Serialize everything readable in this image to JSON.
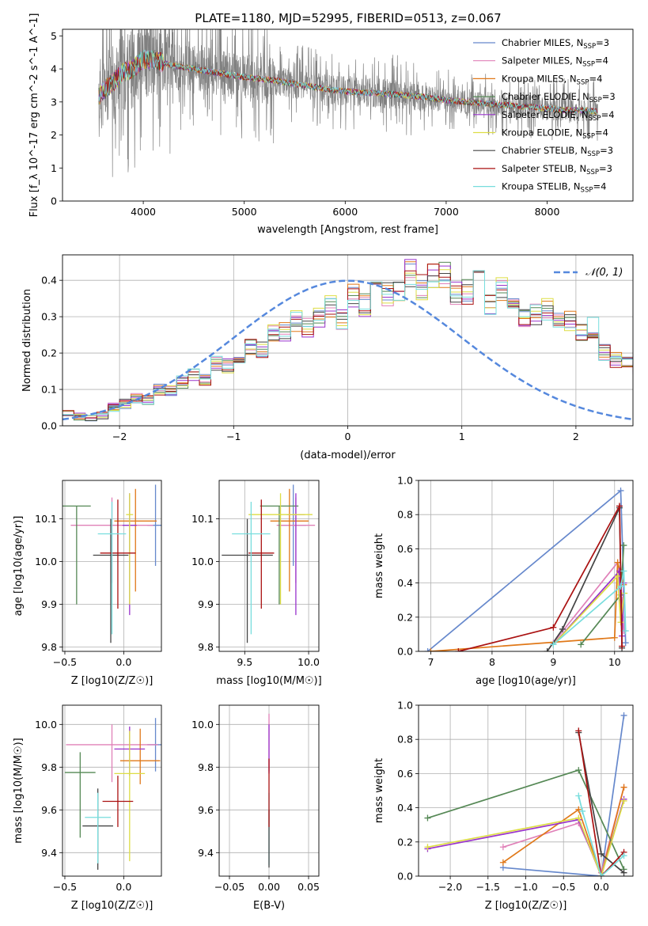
{
  "figure": {
    "title": "PLATE=1180, MJD=52995, FIBERID=0513, z=0.067"
  },
  "series": [
    {
      "key": "chab_miles",
      "name": "Chabrier MILES, N_SSP=3",
      "name_main": "Chabrier MILES, N",
      "name_sub": "SSP",
      "name_tail": "=3",
      "color": "#6688cc"
    },
    {
      "key": "salp_miles",
      "name": "Salpeter MILES, N_SSP=4",
      "name_main": "Salpeter MILES, N",
      "name_sub": "SSP",
      "name_tail": "=4",
      "color": "#e080b8"
    },
    {
      "key": "krou_miles",
      "name": "Kroupa MILES, N_SSP=4",
      "name_main": "Kroupa MILES, N",
      "name_sub": "SSP",
      "name_tail": "=4",
      "color": "#e07818"
    },
    {
      "key": "chab_elodie",
      "name": "Chabrier ELODIE, N_SSP=3",
      "name_main": "Chabrier ELODIE, N",
      "name_sub": "SSP",
      "name_tail": "=3",
      "color": "#558855"
    },
    {
      "key": "salp_elodie",
      "name": "Salpeter ELODIE, N_SSP=4",
      "name_main": "Salpeter ELODIE, N",
      "name_sub": "SSP",
      "name_tail": "=4",
      "color": "#9933cc"
    },
    {
      "key": "krou_elodie",
      "name": "Kroupa ELODIE, N_SSP=4",
      "name_main": "Kroupa ELODIE, N",
      "name_sub": "SSP",
      "name_tail": "=4",
      "color": "#dddd44"
    },
    {
      "key": "chab_stelib",
      "name": "Chabrier STELIB, N_SSP=3",
      "name_main": "Chabrier STELIB, N",
      "name_sub": "SSP",
      "name_tail": "=3",
      "color": "#444444"
    },
    {
      "key": "salp_stelib",
      "name": "Salpeter STELIB, N_SSP=3",
      "name_main": "Salpeter STELIB, N",
      "name_sub": "SSP",
      "name_tail": "=3",
      "color": "#aa1111"
    },
    {
      "key": "krou_stelib",
      "name": "Kroupa STELIB, N_SSP=4",
      "name_main": "Kroupa STELIB, N",
      "name_sub": "SSP",
      "name_tail": "=4",
      "color": "#77dddd"
    }
  ],
  "chart_data": [
    {
      "id": "spectrum",
      "type": "line",
      "xlabel": "wavelength [Angstrom, rest frame]",
      "ylabel": "Flux [f_λ 10^-17 erg cm^-2 s^-1 A^-1]",
      "xlim": [
        3200,
        8850
      ],
      "ylim": [
        0,
        5.2
      ],
      "xticks": [
        4000,
        5000,
        6000,
        7000,
        8000
      ],
      "yticks": [
        0,
        1,
        2,
        3,
        4,
        5
      ],
      "grid": false,
      "legend": "top-right",
      "data_color": "#808080",
      "data_range": [
        3560,
        8500
      ],
      "model_continuum": {
        "x": [
          3560,
          3700,
          3800,
          3900,
          4000,
          4100,
          4300,
          4500,
          4800,
          5000,
          5300,
          5600,
          5900,
          6100,
          6400,
          6600,
          6800,
          7000,
          7200,
          7400,
          7600,
          7800,
          8000,
          8200,
          8400,
          8500
        ],
        "y": [
          3.2,
          3.6,
          3.9,
          4.0,
          4.3,
          4.25,
          4.1,
          4.0,
          3.85,
          3.75,
          3.65,
          3.5,
          3.35,
          3.3,
          3.25,
          3.2,
          3.15,
          3.05,
          3.0,
          2.95,
          2.9,
          2.85,
          2.8,
          2.75,
          2.75,
          2.7
        ]
      }
    },
    {
      "id": "residual_hist",
      "type": "step",
      "xlabel": "(data-model)/error",
      "ylabel": "Normed distribution",
      "xlim": [
        -2.5,
        2.5
      ],
      "ylim": [
        0,
        0.47
      ],
      "xticks": [
        -2,
        -1,
        0,
        1,
        2
      ],
      "yticks": [
        0.0,
        0.1,
        0.2,
        0.3,
        0.4
      ],
      "grid": true,
      "legend": "top-right",
      "gaussian": {
        "label": "𝒩(0, 1)",
        "color": "#5588dd"
      },
      "bin_width": 0.1,
      "mean_hist": [
        0.035,
        0.025,
        0.02,
        0.03,
        0.05,
        0.06,
        0.075,
        0.07,
        0.1,
        0.095,
        0.12,
        0.14,
        0.13,
        0.17,
        0.165,
        0.19,
        0.22,
        0.21,
        0.255,
        0.26,
        0.29,
        0.27,
        0.3,
        0.33,
        0.29,
        0.36,
        0.33,
        0.37,
        0.36,
        0.38,
        0.42,
        0.38,
        0.42,
        0.41,
        0.36,
        0.37,
        0.39,
        0.34,
        0.38,
        0.33,
        0.3,
        0.31,
        0.32,
        0.28,
        0.29,
        0.26,
        0.27,
        0.2,
        0.18,
        0.17,
        0.16,
        0.13,
        0.12,
        0.135,
        0.09,
        0.1,
        0.09,
        0.075,
        0.06,
        0.075,
        0.06,
        0.055,
        0.04,
        0.03,
        0.02,
        0.015,
        0.025,
        0.02,
        0.02,
        0.02
      ]
    },
    {
      "id": "age_vs_Z",
      "type": "errorbar",
      "xlabel": "Z [log10(Z/Z☉)]",
      "ylabel": "age [log10(age/yr)]",
      "xlim": [
        -0.52,
        0.32
      ],
      "ylim": [
        9.79,
        10.19
      ],
      "xticks": [
        -0.5,
        0.0
      ],
      "yticks": [
        9.8,
        9.9,
        10.0,
        10.1
      ],
      "grid": true,
      "points": [
        {
          "s": "chab_miles",
          "x": 0.27,
          "y": 10.085,
          "xerr": 0.07,
          "ylo": 9.99,
          "yhi": 10.18
        },
        {
          "s": "salp_miles",
          "x": -0.1,
          "y": 10.085,
          "xerr": 0.35,
          "ylo": 9.95,
          "yhi": 10.15
        },
        {
          "s": "krou_miles",
          "x": 0.1,
          "y": 10.095,
          "xerr": 0.18,
          "ylo": 9.93,
          "yhi": 10.17
        },
        {
          "s": "chab_elodie",
          "x": -0.4,
          "y": 10.13,
          "xerr": 0.12,
          "ylo": 9.9,
          "yhi": 10.13
        },
        {
          "s": "salp_elodie",
          "x": 0.05,
          "y": 10.085,
          "xerr": 0.06,
          "ylo": 9.875,
          "yhi": 10.16
        },
        {
          "s": "krou_elodie",
          "x": 0.05,
          "y": 10.11,
          "xerr": 0.03,
          "ylo": 9.9,
          "yhi": 10.16
        },
        {
          "s": "chab_stelib",
          "x": -0.11,
          "y": 10.015,
          "xerr": 0.15,
          "ylo": 9.81,
          "yhi": 10.1
        },
        {
          "s": "salp_stelib",
          "x": -0.05,
          "y": 10.02,
          "xerr": 0.15,
          "ylo": 9.89,
          "yhi": 10.145
        },
        {
          "s": "krou_stelib",
          "x": -0.1,
          "y": 10.065,
          "xerr": 0.12,
          "ylo": 9.83,
          "yhi": 10.14
        }
      ]
    },
    {
      "id": "age_vs_mass",
      "type": "errorbar",
      "xlabel": "mass [log10(M/M☉)]",
      "ylabel": "",
      "xlim": [
        9.3,
        10.08
      ],
      "ylim": [
        9.79,
        10.19
      ],
      "xticks": [
        9.5,
        10.0
      ],
      "yticks": [
        9.8,
        9.9,
        10.0,
        10.1
      ],
      "grid": true,
      "points": [
        {
          "s": "chab_miles",
          "x": 9.88,
          "y": 10.085,
          "xerr": 0.1,
          "ylo": 9.99,
          "yhi": 10.18
        },
        {
          "s": "salp_miles",
          "x": 9.9,
          "y": 10.085,
          "xerr": 0.15,
          "ylo": 9.95,
          "yhi": 10.15
        },
        {
          "s": "krou_miles",
          "x": 9.85,
          "y": 10.095,
          "xerr": 0.15,
          "ylo": 9.93,
          "yhi": 10.17
        },
        {
          "s": "chab_elodie",
          "x": 9.77,
          "y": 10.13,
          "xerr": 0.15,
          "ylo": 9.9,
          "yhi": 10.13
        },
        {
          "s": "salp_elodie",
          "x": 9.9,
          "y": 10.11,
          "xerr": 0.07,
          "ylo": 9.875,
          "yhi": 10.16
        },
        {
          "s": "krou_elodie",
          "x": 9.78,
          "y": 10.11,
          "xerr": 0.25,
          "ylo": 9.9,
          "yhi": 10.16
        },
        {
          "s": "chab_stelib",
          "x": 9.52,
          "y": 10.015,
          "xerr": 0.2,
          "ylo": 9.81,
          "yhi": 10.1
        },
        {
          "s": "salp_stelib",
          "x": 9.63,
          "y": 10.02,
          "xerr": 0.1,
          "ylo": 9.89,
          "yhi": 10.145
        },
        {
          "s": "krou_stelib",
          "x": 9.55,
          "y": 10.065,
          "xerr": 0.15,
          "ylo": 9.83,
          "yhi": 10.14
        }
      ]
    },
    {
      "id": "weight_vs_age",
      "type": "line",
      "xlabel": "age [log10(age/yr)]",
      "ylabel": "mass weight",
      "xlim": [
        6.8,
        10.3
      ],
      "ylim": [
        0,
        1.0
      ],
      "xticks": [
        7,
        8,
        9,
        10
      ],
      "yticks": [
        0.0,
        0.2,
        0.4,
        0.6,
        0.8,
        1.0
      ],
      "grid": true,
      "lines": [
        {
          "s": "chab_miles",
          "x": [
            6.95,
            10.1,
            10.18
          ],
          "y": [
            0.0,
            0.94,
            0.05
          ]
        },
        {
          "s": "salp_miles",
          "x": [
            9.0,
            10.05,
            10.15,
            10.12
          ],
          "y": [
            0.05,
            0.52,
            0.12,
            0.3
          ]
        },
        {
          "s": "krou_miles",
          "x": [
            7.0,
            10.0,
            10.05,
            10.15
          ],
          "y": [
            0.0,
            0.08,
            0.52,
            0.39
          ]
        },
        {
          "s": "chab_elodie",
          "x": [
            9.45,
            10.1,
            10.15
          ],
          "y": [
            0.04,
            0.33,
            0.62
          ]
        },
        {
          "s": "salp_elodie",
          "x": [
            9.0,
            10.08,
            10.12,
            10.15
          ],
          "y": [
            0.04,
            0.47,
            0.09,
            0.4
          ]
        },
        {
          "s": "krou_elodie",
          "x": [
            9.0,
            10.05,
            10.1,
            10.16
          ],
          "y": [
            0.04,
            0.44,
            0.17,
            0.34
          ]
        },
        {
          "s": "chab_stelib",
          "x": [
            8.9,
            9.15,
            10.08,
            10.12
          ],
          "y": [
            0.0,
            0.13,
            0.84,
            0.02
          ]
        },
        {
          "s": "salp_stelib",
          "x": [
            7.45,
            9.0,
            10.08,
            10.12
          ],
          "y": [
            0.0,
            0.14,
            0.85,
            0.03
          ]
        },
        {
          "s": "krou_stelib",
          "x": [
            9.0,
            10.1,
            10.15,
            10.18
          ],
          "y": [
            0.04,
            0.38,
            0.47,
            0.12
          ]
        }
      ]
    },
    {
      "id": "mass_vs_Z",
      "type": "errorbar",
      "xlabel": "Z [log10(Z/Z☉)]",
      "ylabel": "mass [log10(M/M☉)]",
      "xlim": [
        -0.52,
        0.32
      ],
      "ylim": [
        9.29,
        10.09
      ],
      "xticks": [
        -0.5,
        0.0
      ],
      "yticks": [
        9.4,
        9.6,
        9.8,
        10.0
      ],
      "grid": true,
      "points": [
        {
          "s": "chab_miles",
          "x": 0.27,
          "y": 9.905,
          "xerr": 0.07,
          "ylo": 9.78,
          "yhi": 10.03
        },
        {
          "s": "salp_miles",
          "x": -0.1,
          "y": 9.905,
          "xerr": 0.39,
          "ylo": 9.73,
          "yhi": 10.0
        },
        {
          "s": "krou_miles",
          "x": 0.14,
          "y": 9.83,
          "xerr": 0.17,
          "ylo": 9.72,
          "yhi": 9.98
        },
        {
          "s": "chab_elodie",
          "x": -0.37,
          "y": 9.775,
          "xerr": 0.13,
          "ylo": 9.47,
          "yhi": 9.87
        },
        {
          "s": "salp_elodie",
          "x": 0.05,
          "y": 9.885,
          "xerr": 0.13,
          "ylo": 9.76,
          "yhi": 9.99
        },
        {
          "s": "krou_elodie",
          "x": 0.05,
          "y": 9.77,
          "xerr": 0.13,
          "ylo": 9.36,
          "yhi": 9.97
        },
        {
          "s": "chab_stelib",
          "x": -0.22,
          "y": 9.525,
          "xerr": 0.13,
          "ylo": 9.32,
          "yhi": 9.7
        },
        {
          "s": "salp_stelib",
          "x": -0.05,
          "y": 9.64,
          "xerr": 0.13,
          "ylo": 9.52,
          "yhi": 9.76
        },
        {
          "s": "krou_stelib",
          "x": -0.22,
          "y": 9.565,
          "xerr": 0.11,
          "ylo": 9.35,
          "yhi": 9.68
        }
      ]
    },
    {
      "id": "mass_vs_EBV",
      "type": "errorbar",
      "xlabel": "E(B-V)",
      "ylabel": "",
      "xlim": [
        -0.063,
        0.063
      ],
      "ylim": [
        9.29,
        10.09
      ],
      "xticks": [
        -0.05,
        0.0,
        0.05
      ],
      "yticks": [
        9.4,
        9.6,
        9.8,
        10.0
      ],
      "grid": true,
      "points": [
        {
          "s": "krou_stelib",
          "x": 0.0,
          "y": 9.56,
          "xerr": 0,
          "ylo": 9.34,
          "yhi": 9.68
        },
        {
          "s": "chab_stelib",
          "x": 0.0,
          "y": 9.52,
          "xerr": 0,
          "ylo": 9.33,
          "yhi": 9.6
        },
        {
          "s": "salp_miles",
          "x": 0.0,
          "y": 9.9,
          "xerr": 0,
          "ylo": 9.78,
          "yhi": 10.05
        },
        {
          "s": "salp_elodie",
          "x": 0.0,
          "y": 9.88,
          "xerr": 0,
          "ylo": 9.77,
          "yhi": 10.0
        },
        {
          "s": "salp_stelib",
          "x": 0.0,
          "y": 9.64,
          "xerr": 0,
          "ylo": 9.52,
          "yhi": 9.84
        }
      ]
    },
    {
      "id": "weight_vs_Z",
      "type": "line",
      "xlabel": "Z [log10(Z/Z☉)]",
      "ylabel": "mass weight",
      "xlim": [
        -2.42,
        0.42
      ],
      "ylim": [
        0,
        1.0
      ],
      "xticks": [
        -2.0,
        -1.5,
        -1.0,
        -0.5,
        0.0
      ],
      "yticks": [
        0.0,
        0.2,
        0.4,
        0.6,
        0.8,
        1.0
      ],
      "grid": true,
      "lines": [
        {
          "s": "chab_miles",
          "x": [
            -1.3,
            0.0,
            0.3
          ],
          "y": [
            0.05,
            0.0,
            0.94
          ]
        },
        {
          "s": "salp_miles",
          "x": [
            -1.3,
            -0.3,
            0.0,
            0.3
          ],
          "y": [
            0.17,
            0.31,
            0.02,
            0.52
          ]
        },
        {
          "s": "krou_miles",
          "x": [
            -1.3,
            -0.3,
            0.0,
            0.3
          ],
          "y": [
            0.08,
            0.39,
            0.0,
            0.52
          ]
        },
        {
          "s": "chab_elodie",
          "x": [
            -2.3,
            -0.3,
            0.3
          ],
          "y": [
            0.34,
            0.62,
            0.04
          ]
        },
        {
          "s": "salp_elodie",
          "x": [
            -2.3,
            -0.3,
            0.0,
            0.3
          ],
          "y": [
            0.16,
            0.33,
            0.0,
            0.45
          ]
        },
        {
          "s": "krou_elodie",
          "x": [
            -2.3,
            -0.3,
            0.0,
            0.3
          ],
          "y": [
            0.17,
            0.34,
            0.0,
            0.44
          ]
        },
        {
          "s": "chab_stelib",
          "x": [
            -0.3,
            0.0,
            0.3
          ],
          "y": [
            0.84,
            0.13,
            0.02
          ]
        },
        {
          "s": "salp_stelib",
          "x": [
            -0.3,
            0.0,
            0.3
          ],
          "y": [
            0.85,
            0.0,
            0.14
          ]
        },
        {
          "s": "krou_stelib",
          "x": [
            -0.3,
            -0.25,
            0.0,
            0.3
          ],
          "y": [
            0.47,
            0.38,
            0.0,
            0.12
          ]
        }
      ]
    }
  ]
}
